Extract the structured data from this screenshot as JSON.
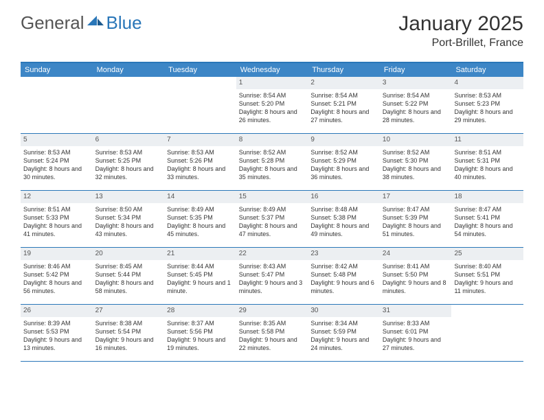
{
  "logo": {
    "general": "General",
    "blue": "Blue"
  },
  "title": "January 2025",
  "location": "Port-Brillet, France",
  "header_bg": "#3d86c6",
  "border_color": "#2976b8",
  "daynum_bg": "#eceff2",
  "weekdays": [
    "Sunday",
    "Monday",
    "Tuesday",
    "Wednesday",
    "Thursday",
    "Friday",
    "Saturday"
  ],
  "weeks": [
    [
      null,
      null,
      null,
      {
        "n": "1",
        "sr": "8:54 AM",
        "ss": "5:20 PM",
        "dh": "8",
        "dm": "26"
      },
      {
        "n": "2",
        "sr": "8:54 AM",
        "ss": "5:21 PM",
        "dh": "8",
        "dm": "27"
      },
      {
        "n": "3",
        "sr": "8:54 AM",
        "ss": "5:22 PM",
        "dh": "8",
        "dm": "28"
      },
      {
        "n": "4",
        "sr": "8:53 AM",
        "ss": "5:23 PM",
        "dh": "8",
        "dm": "29"
      }
    ],
    [
      {
        "n": "5",
        "sr": "8:53 AM",
        "ss": "5:24 PM",
        "dh": "8",
        "dm": "30"
      },
      {
        "n": "6",
        "sr": "8:53 AM",
        "ss": "5:25 PM",
        "dh": "8",
        "dm": "32"
      },
      {
        "n": "7",
        "sr": "8:53 AM",
        "ss": "5:26 PM",
        "dh": "8",
        "dm": "33"
      },
      {
        "n": "8",
        "sr": "8:52 AM",
        "ss": "5:28 PM",
        "dh": "8",
        "dm": "35"
      },
      {
        "n": "9",
        "sr": "8:52 AM",
        "ss": "5:29 PM",
        "dh": "8",
        "dm": "36"
      },
      {
        "n": "10",
        "sr": "8:52 AM",
        "ss": "5:30 PM",
        "dh": "8",
        "dm": "38"
      },
      {
        "n": "11",
        "sr": "8:51 AM",
        "ss": "5:31 PM",
        "dh": "8",
        "dm": "40"
      }
    ],
    [
      {
        "n": "12",
        "sr": "8:51 AM",
        "ss": "5:33 PM",
        "dh": "8",
        "dm": "41"
      },
      {
        "n": "13",
        "sr": "8:50 AM",
        "ss": "5:34 PM",
        "dh": "8",
        "dm": "43"
      },
      {
        "n": "14",
        "sr": "8:49 AM",
        "ss": "5:35 PM",
        "dh": "8",
        "dm": "45"
      },
      {
        "n": "15",
        "sr": "8:49 AM",
        "ss": "5:37 PM",
        "dh": "8",
        "dm": "47"
      },
      {
        "n": "16",
        "sr": "8:48 AM",
        "ss": "5:38 PM",
        "dh": "8",
        "dm": "49"
      },
      {
        "n": "17",
        "sr": "8:47 AM",
        "ss": "5:39 PM",
        "dh": "8",
        "dm": "51"
      },
      {
        "n": "18",
        "sr": "8:47 AM",
        "ss": "5:41 PM",
        "dh": "8",
        "dm": "54"
      }
    ],
    [
      {
        "n": "19",
        "sr": "8:46 AM",
        "ss": "5:42 PM",
        "dh": "8",
        "dm": "56"
      },
      {
        "n": "20",
        "sr": "8:45 AM",
        "ss": "5:44 PM",
        "dh": "8",
        "dm": "58"
      },
      {
        "n": "21",
        "sr": "8:44 AM",
        "ss": "5:45 PM",
        "dh": "9",
        "dm": "1",
        "dm_unit": "minute"
      },
      {
        "n": "22",
        "sr": "8:43 AM",
        "ss": "5:47 PM",
        "dh": "9",
        "dm": "3"
      },
      {
        "n": "23",
        "sr": "8:42 AM",
        "ss": "5:48 PM",
        "dh": "9",
        "dm": "6"
      },
      {
        "n": "24",
        "sr": "8:41 AM",
        "ss": "5:50 PM",
        "dh": "9",
        "dm": "8"
      },
      {
        "n": "25",
        "sr": "8:40 AM",
        "ss": "5:51 PM",
        "dh": "9",
        "dm": "11"
      }
    ],
    [
      {
        "n": "26",
        "sr": "8:39 AM",
        "ss": "5:53 PM",
        "dh": "9",
        "dm": "13"
      },
      {
        "n": "27",
        "sr": "8:38 AM",
        "ss": "5:54 PM",
        "dh": "9",
        "dm": "16"
      },
      {
        "n": "28",
        "sr": "8:37 AM",
        "ss": "5:56 PM",
        "dh": "9",
        "dm": "19"
      },
      {
        "n": "29",
        "sr": "8:35 AM",
        "ss": "5:58 PM",
        "dh": "9",
        "dm": "22"
      },
      {
        "n": "30",
        "sr": "8:34 AM",
        "ss": "5:59 PM",
        "dh": "9",
        "dm": "24"
      },
      {
        "n": "31",
        "sr": "8:33 AM",
        "ss": "6:01 PM",
        "dh": "9",
        "dm": "27"
      },
      null
    ]
  ],
  "labels": {
    "sunrise": "Sunrise:",
    "sunset": "Sunset:",
    "daylight": "Daylight:",
    "hours": "hours",
    "and": "and",
    "minutes": "minutes."
  }
}
